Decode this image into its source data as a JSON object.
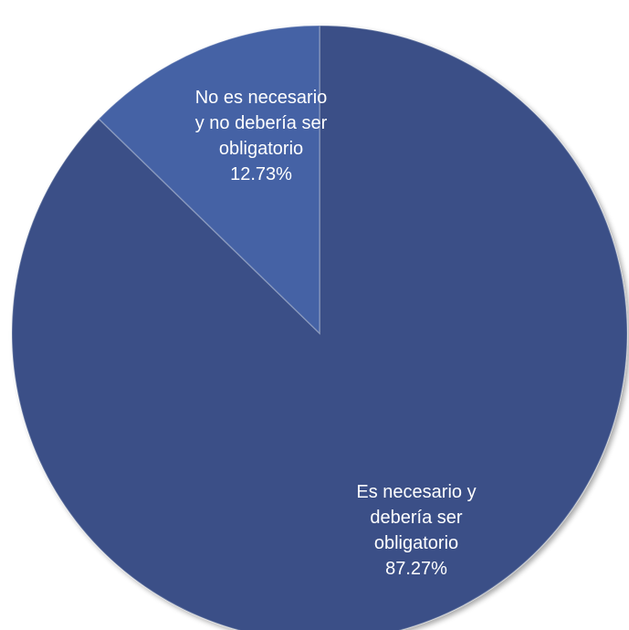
{
  "chart_data": {
    "type": "pie",
    "slices": [
      {
        "label_lines": [
          "Es necesario y",
          "debería ser",
          "obligatorio"
        ],
        "value": 87.27,
        "value_label": "87.27%",
        "color": "#3a5087"
      },
      {
        "label_lines": [
          "No es necesario",
          "y no debería ser",
          "obligatorio"
        ],
        "value": 12.73,
        "value_label": "12.73%",
        "color": "#4562a5"
      }
    ],
    "start_angle": "12 o'clock",
    "direction": "clockwise",
    "legend": "none"
  }
}
